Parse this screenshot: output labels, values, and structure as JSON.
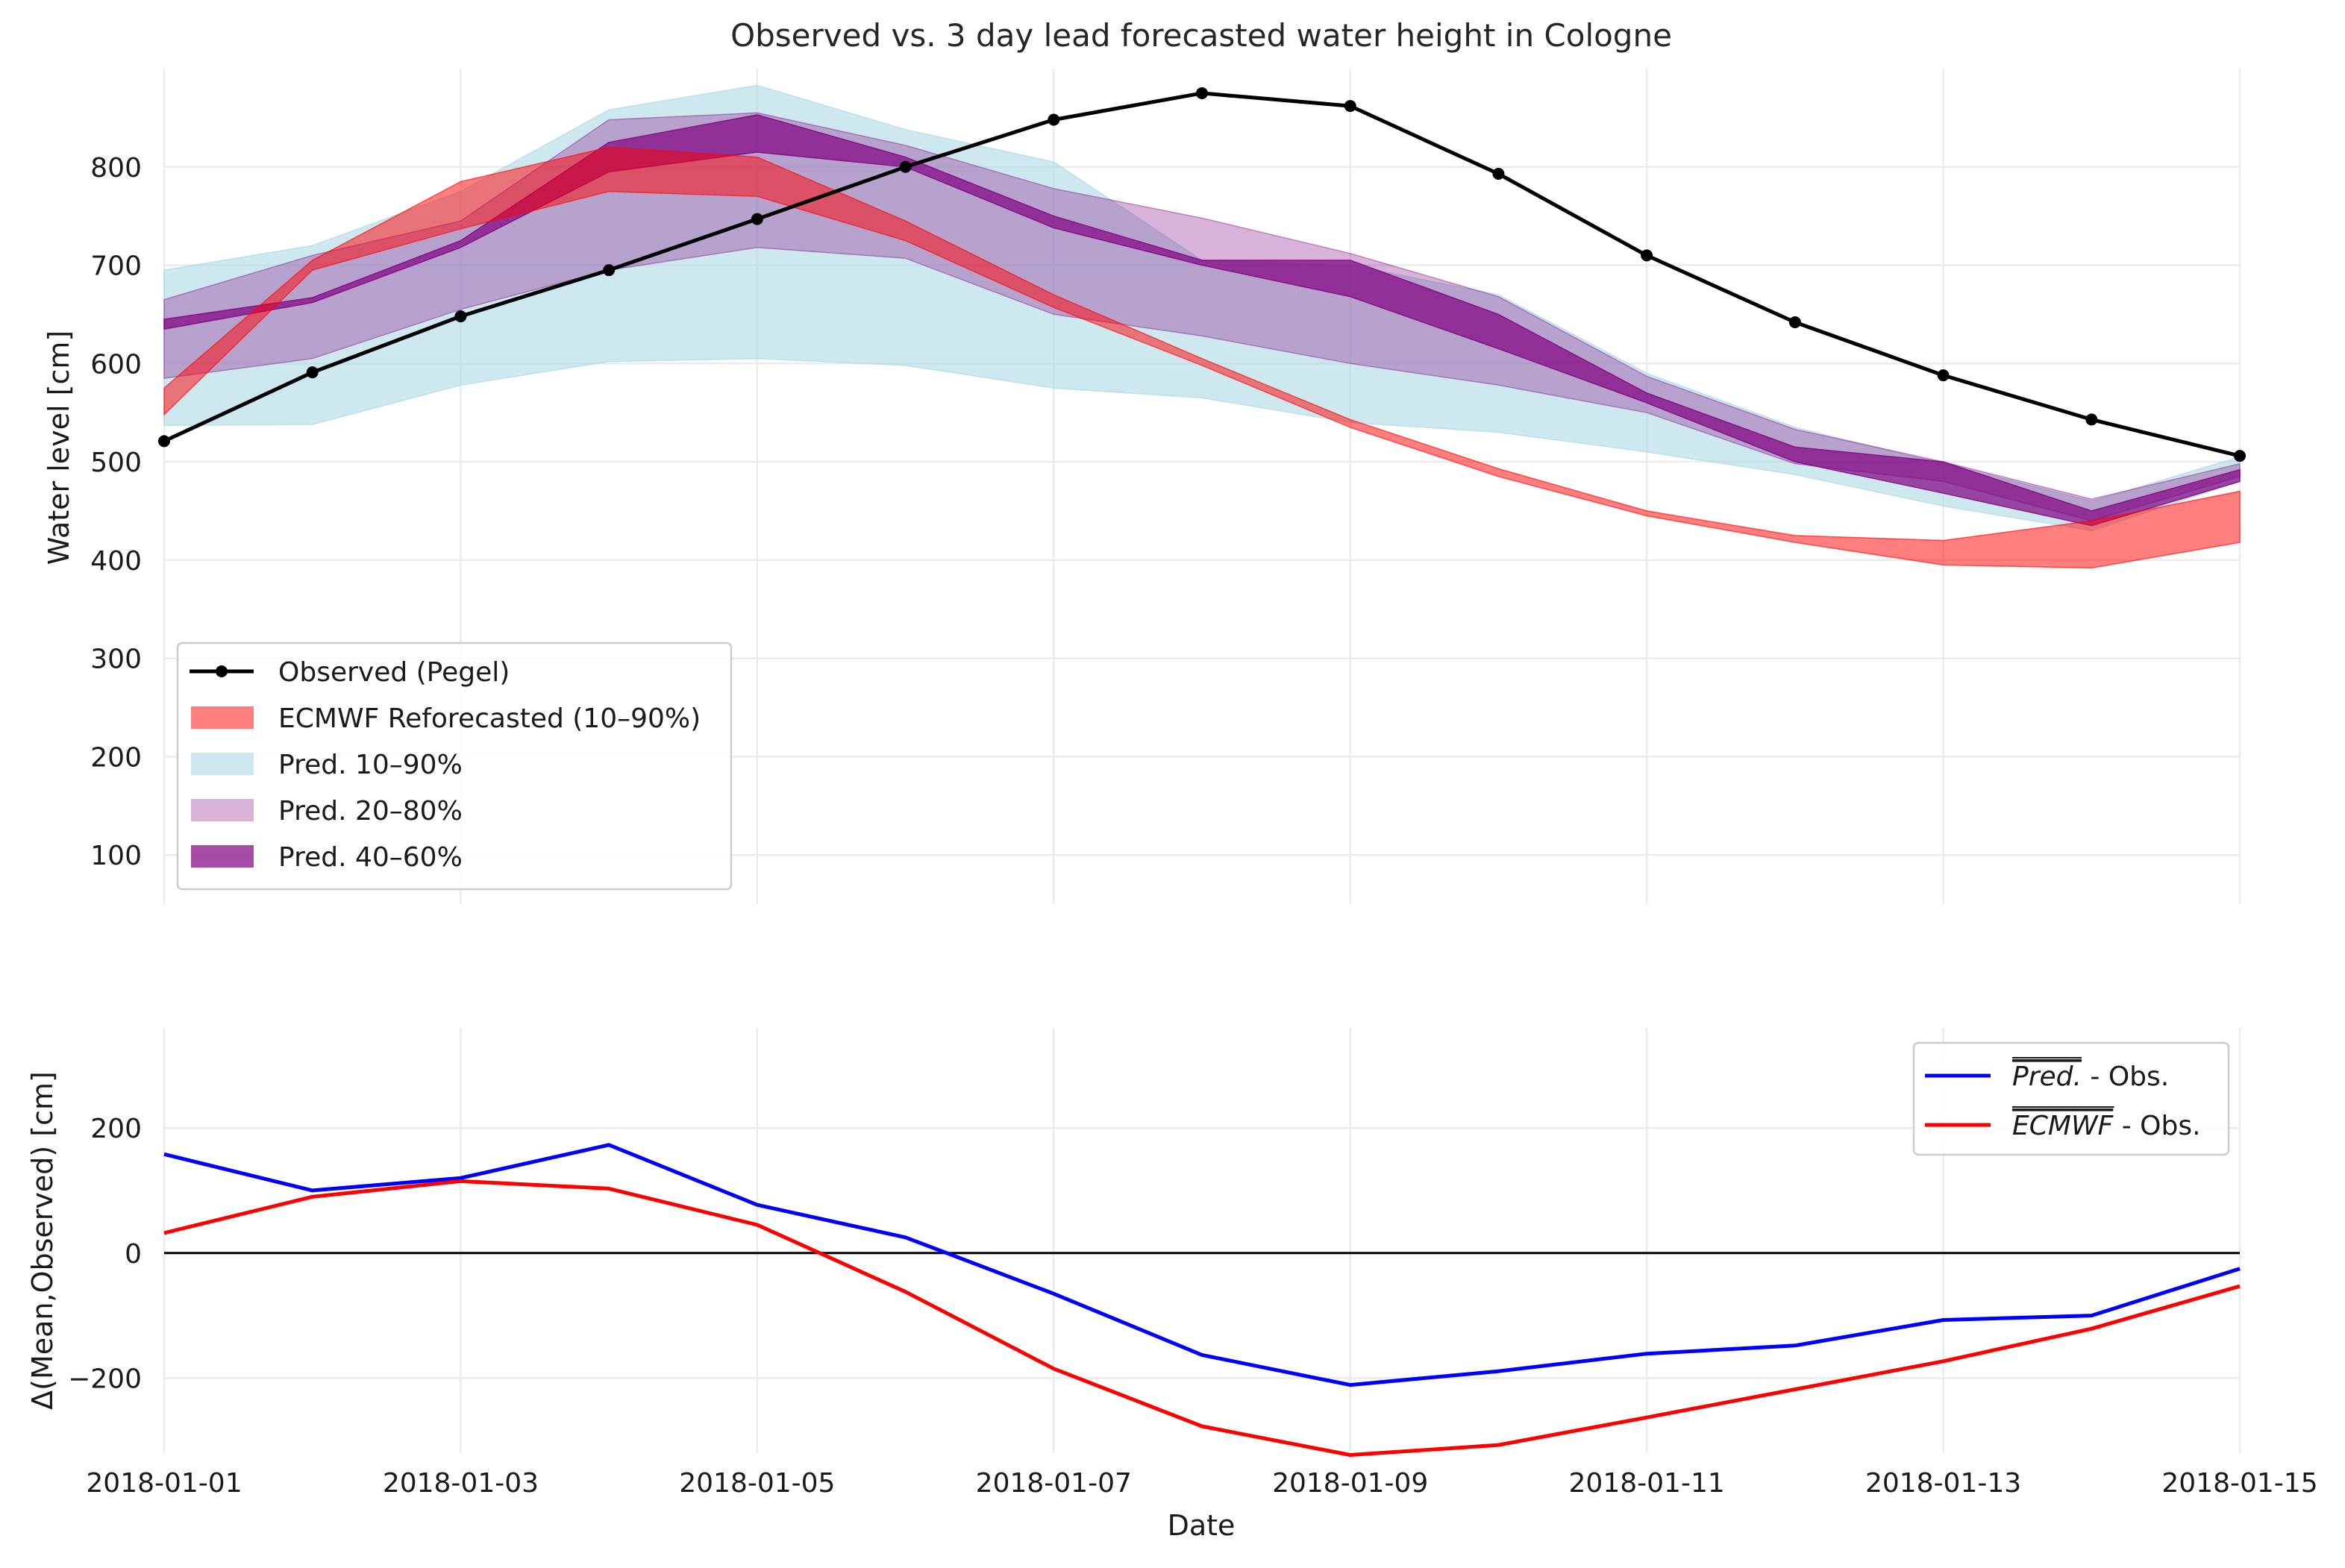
{
  "chart_data": [
    {
      "type": "area",
      "title": "Observed vs. 3 day lead forecasted water height in Cologne",
      "xlabel": "",
      "ylabel": "Water level [cm]",
      "x": [
        "2018-01-01",
        "2018-01-02",
        "2018-01-03",
        "2018-01-04",
        "2018-01-05",
        "2018-01-06",
        "2018-01-07",
        "2018-01-08",
        "2018-01-09",
        "2018-01-10",
        "2018-01-11",
        "2018-01-12",
        "2018-01-13",
        "2018-01-14",
        "2018-01-15"
      ],
      "xlim": [
        "2018-01-01",
        "2018-01-15"
      ],
      "ylim": [
        50,
        900
      ],
      "yticks": [
        100,
        200,
        300,
        400,
        500,
        600,
        700,
        800
      ],
      "grid": true,
      "legend_position": "lower-left",
      "series": [
        {
          "name": "Pred. 10–90%",
          "kind": "band",
          "color": "#add8e6",
          "alpha": 0.6,
          "lower": [
            537,
            538,
            578,
            602,
            605,
            598,
            575,
            565,
            540,
            530,
            510,
            487,
            455,
            430,
            480
          ],
          "upper": [
            695,
            720,
            775,
            858,
            883,
            838,
            805,
            705,
            700,
            670,
            590,
            535,
            498,
            460,
            505
          ]
        },
        {
          "name": "Pred. 20–80%",
          "kind": "band",
          "color": "#800080",
          "alpha": 0.3,
          "lower": [
            585,
            605,
            655,
            695,
            718,
            707,
            650,
            628,
            600,
            578,
            550,
            498,
            480,
            440,
            485
          ],
          "upper": [
            665,
            710,
            745,
            848,
            855,
            822,
            778,
            748,
            712,
            668,
            587,
            533,
            500,
            462,
            498
          ]
        },
        {
          "name": "Pred. 40–60%",
          "kind": "band",
          "color": "#800080",
          "alpha": 0.7,
          "lower": [
            635,
            662,
            718,
            795,
            815,
            800,
            738,
            700,
            668,
            615,
            560,
            500,
            468,
            435,
            480
          ],
          "upper": [
            645,
            667,
            725,
            825,
            853,
            810,
            750,
            705,
            705,
            650,
            570,
            515,
            500,
            450,
            492
          ]
        },
        {
          "name": "ECMWF Reforecasted (10–90%)",
          "kind": "band",
          "color": "#ff0000",
          "alpha": 0.5,
          "lower": [
            548,
            695,
            737,
            775,
            770,
            725,
            657,
            598,
            535,
            485,
            445,
            418,
            395,
            392,
            418
          ],
          "upper": [
            575,
            705,
            785,
            820,
            810,
            745,
            670,
            605,
            543,
            493,
            450,
            425,
            420,
            440,
            470
          ]
        },
        {
          "name": "Observed (Pegel)",
          "kind": "line",
          "color": "#000000",
          "marker": "dot",
          "values": [
            521,
            591,
            648,
            695,
            747,
            800,
            848,
            875,
            862,
            793,
            710,
            642,
            588,
            543,
            506
          ]
        }
      ]
    },
    {
      "type": "line",
      "title": "",
      "xlabel": "Date",
      "ylabel": "Δ(Mean,Observed) [cm]",
      "x": [
        "2018-01-01",
        "2018-01-02",
        "2018-01-03",
        "2018-01-04",
        "2018-01-05",
        "2018-01-06",
        "2018-01-07",
        "2018-01-08",
        "2018-01-09",
        "2018-01-10",
        "2018-01-11",
        "2018-01-12",
        "2018-01-13",
        "2018-01-14",
        "2018-01-15"
      ],
      "xticks": [
        "2018-01-01",
        "2018-01-03",
        "2018-01-05",
        "2018-01-07",
        "2018-01-09",
        "2018-01-11",
        "2018-01-13",
        "2018-01-15"
      ],
      "ylim": [
        -320,
        360
      ],
      "yticks": [
        -200,
        0,
        200
      ],
      "zero_line": true,
      "grid": true,
      "legend_position": "top-right",
      "series": [
        {
          "name": "Pred. - Obs.",
          "legend_math": "Pred.",
          "legend_suffix": " - Obs.",
          "color": "#0000ff",
          "values": [
            158,
            100,
            120,
            173,
            77,
            25,
            -65,
            -163,
            -211,
            -189,
            -161,
            -148,
            -107,
            -100,
            -25
          ]
        },
        {
          "name": "ECMWF - Obs.",
          "legend_math": "ECMWF",
          "legend_suffix": " - Obs.",
          "color": "#ff0000",
          "values": [
            32,
            90,
            115,
            103,
            45,
            -62,
            -185,
            -277,
            -323,
            -307,
            -263,
            -218,
            -173,
            -121,
            -53
          ]
        }
      ]
    }
  ]
}
